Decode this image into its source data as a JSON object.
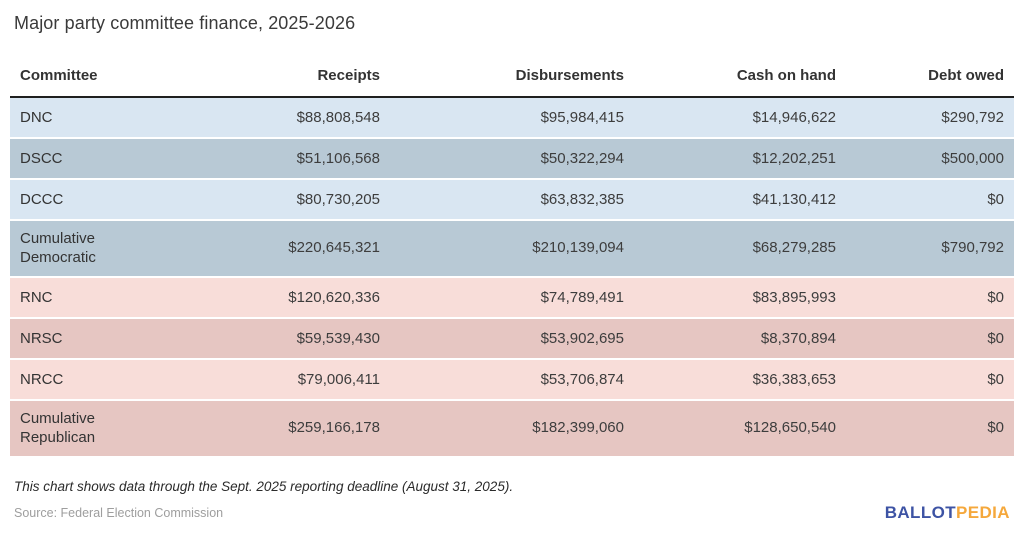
{
  "title": "Major party committee finance, 2025-2026",
  "chart_data": {
    "type": "table",
    "title": "Major party committee finance, 2025-2026",
    "columns": [
      "Committee",
      "Receipts",
      "Disbursements",
      "Cash on hand",
      "Debt owed"
    ],
    "rows": [
      [
        "DNC",
        "$88,808,548",
        "$95,984,415",
        "$14,946,622",
        "$290,792"
      ],
      [
        "DSCC",
        "$51,106,568",
        "$50,322,294",
        "$12,202,251",
        "$500,000"
      ],
      [
        "DCCC",
        "$80,730,205",
        "$63,832,385",
        "$41,130,412",
        "$0"
      ],
      [
        "Cumulative Democratic",
        "$220,645,321",
        "$210,139,094",
        "$68,279,285",
        "$790,792"
      ],
      [
        "RNC",
        "$120,620,336",
        "$74,789,491",
        "$83,895,993",
        "$0"
      ],
      [
        "NRSC",
        "$59,539,430",
        "$53,902,695",
        "$8,370,894",
        "$0"
      ],
      [
        "NRCC",
        "$79,006,411",
        "$53,706,874",
        "$36,383,653",
        "$0"
      ],
      [
        "Cumulative Republican",
        "$259,166,178",
        "$182,399,060",
        "$128,650,540",
        "$0"
      ]
    ],
    "row_styles": [
      "dem-light",
      "dem-dark",
      "dem-light",
      "dem-dark",
      "rep-light",
      "rep-dark",
      "rep-light",
      "rep-dark"
    ],
    "note": "This chart shows data through the Sept. 2025 reporting deadline (August 31, 2025).",
    "source": "Source: Federal Election Commission"
  },
  "footer": {
    "note": "This chart shows data through the Sept. 2025 reporting deadline (August 31, 2025).",
    "source": "Source: Federal Election Commission",
    "logo_part1": "BALLOT",
    "logo_part2": "PEDIA"
  },
  "colors": {
    "dem_row_light": "#d9e6f2",
    "dem_row_dark": "#b8c9d5",
    "rep_row_light": "#f8ddd9",
    "rep_row_dark": "#e6c6c2",
    "header_rule": "#1f1f1f",
    "logo_blue": "#3d53a4",
    "logo_orange": "#f5a83c"
  }
}
